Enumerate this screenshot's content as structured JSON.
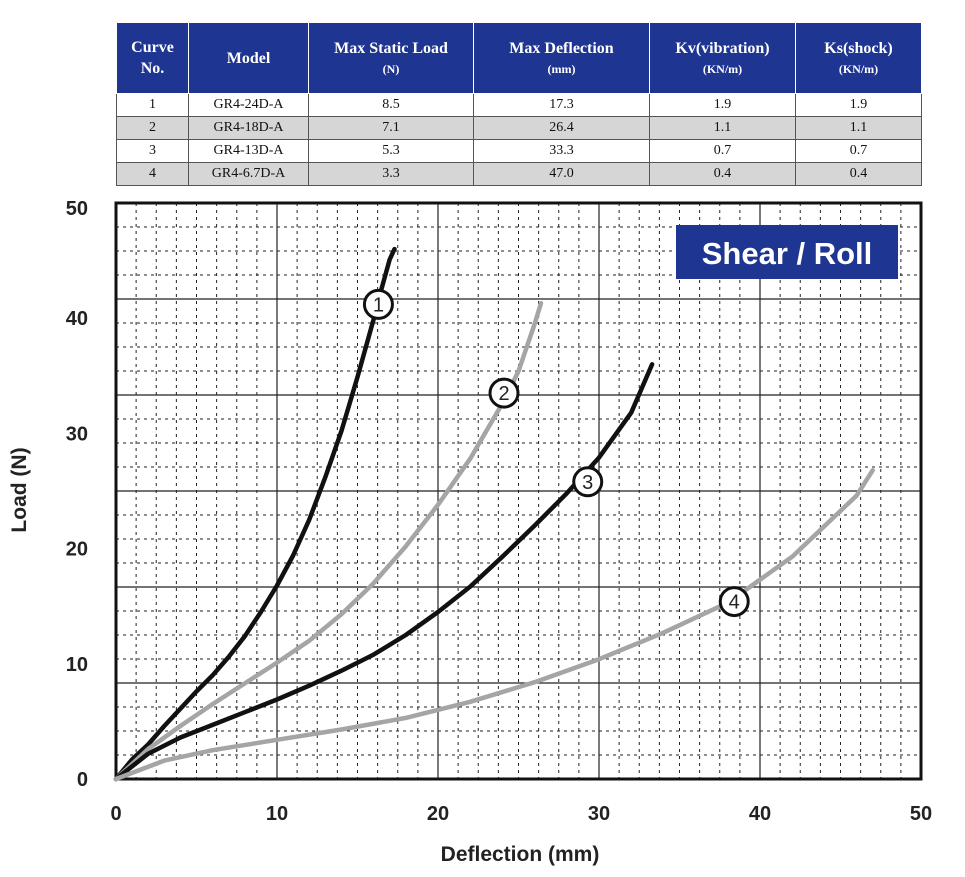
{
  "table": {
    "headers": [
      {
        "label": "Curve No.",
        "unit": ""
      },
      {
        "label": "Model",
        "unit": ""
      },
      {
        "label": "Max Static Load",
        "unit": "(N)"
      },
      {
        "label": "Max Deflection",
        "unit": "(mm)"
      },
      {
        "label": "Kv(vibration)",
        "unit": "(KN/m)"
      },
      {
        "label": "Ks(shock)",
        "unit": "(KN/m)"
      }
    ],
    "rows": [
      [
        "1",
        "GR4-24D-A",
        "8.5",
        "17.3",
        "1.9",
        "1.9"
      ],
      [
        "2",
        "GR4-18D-A",
        "7.1",
        "26.4",
        "1.1",
        "1.1"
      ],
      [
        "3",
        "GR4-13D-A",
        "5.3",
        "33.3",
        "0.7",
        "0.7"
      ],
      [
        "4",
        "GR4-6.7D-A",
        "3.3",
        "47.0",
        "0.4",
        "0.4"
      ]
    ]
  },
  "colors": {
    "header_bg": "#1f3592",
    "badge_bg": "#1f3592",
    "curve_dark": "#111111",
    "curve_light": "#a5a5a5",
    "alt_row": "#d6d6d6"
  },
  "chart_data": {
    "type": "line",
    "title": "Shear / Roll",
    "xlabel": "Deflection (mm)",
    "ylabel": "Load (N)",
    "xlim": [
      0,
      50
    ],
    "ylim": [
      0,
      50
    ],
    "xticks": [
      0,
      10,
      20,
      30,
      40,
      50
    ],
    "yticks": [
      0,
      10,
      20,
      30,
      40,
      50
    ],
    "grid": true,
    "series": [
      {
        "name": "1",
        "color": "#111111",
        "label_at": [
          16.3,
          41.2
        ],
        "x": [
          0,
          1,
          2,
          3,
          4,
          5,
          6,
          7,
          8,
          9,
          10,
          11,
          12,
          13,
          14,
          15,
          16,
          16.5,
          17,
          17.3
        ],
        "y": [
          0,
          1.7,
          3.0,
          4.6,
          6.1,
          7.6,
          9.0,
          10.6,
          12.4,
          14.5,
          16.8,
          19.4,
          22.5,
          26.2,
          30.2,
          34.9,
          39.9,
          42.6,
          45.1,
          46.0
        ]
      },
      {
        "name": "2",
        "color": "#a5a5a5",
        "label_at": [
          24.1,
          33.5
        ],
        "x": [
          0,
          2,
          4,
          6,
          8,
          10,
          12,
          14,
          16,
          18,
          20,
          22,
          24,
          25,
          26,
          26.4
        ],
        "y": [
          0,
          2.6,
          4.6,
          6.5,
          8.3,
          10.1,
          12.0,
          14.3,
          17.0,
          20.2,
          23.8,
          27.8,
          32.6,
          35.4,
          39.5,
          41.3
        ]
      },
      {
        "name": "3",
        "color": "#111111",
        "label_at": [
          29.3,
          25.8
        ],
        "x": [
          0,
          2,
          4,
          6,
          8,
          10,
          12,
          14,
          16,
          18,
          20,
          22,
          24,
          26,
          28,
          30,
          32,
          33.3
        ],
        "y": [
          0,
          2.2,
          3.6,
          4.7,
          5.8,
          6.9,
          8.1,
          9.4,
          10.8,
          12.5,
          14.5,
          16.7,
          19.3,
          22.0,
          24.8,
          27.9,
          31.8,
          36.0
        ]
      },
      {
        "name": "4",
        "color": "#a5a5a5",
        "label_at": [
          38.4,
          15.4
        ],
        "x": [
          0,
          3,
          6,
          10,
          14,
          18,
          22,
          26,
          30,
          34,
          38,
          42,
          46,
          47
        ],
        "y": [
          0,
          1.6,
          2.5,
          3.4,
          4.3,
          5.3,
          6.7,
          8.4,
          10.4,
          12.7,
          15.3,
          19.3,
          24.6,
          26.8
        ]
      }
    ]
  }
}
